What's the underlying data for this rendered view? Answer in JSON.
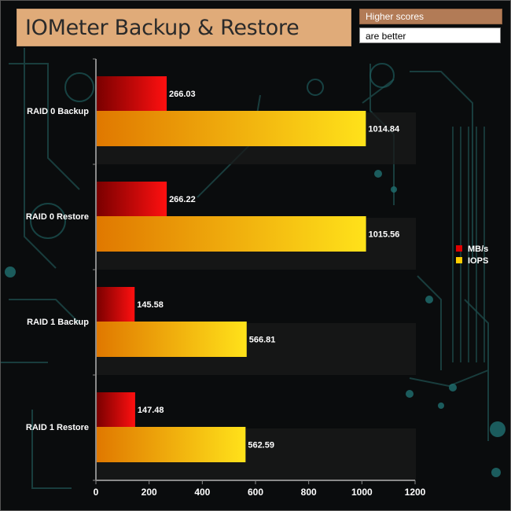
{
  "header": {
    "title": "IOMeter Backup & Restore",
    "note_line1": "Higher scores",
    "note_line2": "are better"
  },
  "colors": {
    "mbs": "#e00000",
    "iops": "#ffcc00",
    "panel": "#e0ab79",
    "note_bg": "#b27b56"
  },
  "chart_data": {
    "type": "bar",
    "orientation": "horizontal",
    "title": "IOMeter Backup & Restore",
    "categories": [
      "RAID 0 Backup",
      "RAID 0 Restore",
      "RAID 1 Backup",
      "RAID 1 Restore"
    ],
    "series": [
      {
        "name": "MB/s",
        "values": [
          266.03,
          266.22,
          145.58,
          147.48
        ],
        "color": "#e00000"
      },
      {
        "name": "IOPS",
        "values": [
          1014.84,
          1015.56,
          566.81,
          562.59
        ],
        "color": "#ffcc00"
      }
    ],
    "xlim": [
      0,
      1200
    ],
    "xticks": [
      0,
      200,
      400,
      600,
      800,
      1000,
      1200
    ],
    "legend_position": "right",
    "grid": false
  }
}
